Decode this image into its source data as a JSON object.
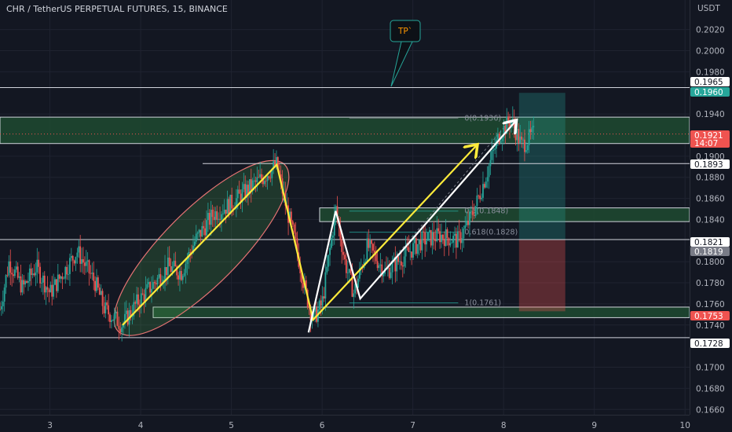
{
  "header": {
    "title": "CHR / TetherUS PERPETUAL FUTURES, 15, BINANCE"
  },
  "axis": {
    "currency": "USDT",
    "ticks": [
      "0.2020",
      "0.2000",
      "0.1980",
      "0.1940",
      "0.1900",
      "0.1880",
      "0.1860",
      "0.1840",
      "0.1800",
      "0.1780",
      "0.1760",
      "0.1740",
      "0.1700",
      "0.1680",
      "0.1660"
    ],
    "x_ticks": [
      "3",
      "4",
      "5",
      "6",
      "7",
      "8",
      "9",
      "10"
    ]
  },
  "tp_label": "TP`",
  "fib": {
    "level_0": "0(0.1936)",
    "level_05": "0.5(0.1848)",
    "level_0618": "0.618(0.1828)",
    "level_1": "1(0.1761)"
  },
  "price_tags": [
    {
      "text": "0.1965",
      "style": "white"
    },
    {
      "text": "0.1960",
      "style": "green"
    },
    {
      "text": "0.1921",
      "style": "red"
    },
    {
      "text": "14:07",
      "style": "red"
    },
    {
      "text": "0.1893",
      "style": "white"
    },
    {
      "text": "0.1821",
      "style": "white"
    },
    {
      "text": "0.1819",
      "style": "gray"
    },
    {
      "text": "0.1753",
      "style": "red"
    },
    {
      "text": "0.1728",
      "style": "white"
    }
  ],
  "colors": {
    "background": "#131722",
    "up": "#26a69a",
    "down": "#ef5350",
    "zone": "#1e4a30",
    "yellow": "#ffeb3b",
    "white": "#ffffff"
  },
  "chart_data": {
    "type": "candlestick",
    "symbol": "CHR / TetherUS PERPETUAL FUTURES",
    "interval": "15",
    "exchange": "BINANCE",
    "x_ticks": [
      3,
      4,
      5,
      6,
      7,
      8,
      9,
      10
    ],
    "xlim": [
      2.45,
      10.05
    ],
    "ylim": [
      0.1655,
      0.2048
    ],
    "y_ticks": [
      0.202,
      0.2,
      0.198,
      0.194,
      0.19,
      0.188,
      0.186,
      0.184,
      0.18,
      0.178,
      0.176,
      0.174,
      0.17,
      0.168,
      0.166
    ],
    "price_path": [
      [
        2.45,
        0.1755
      ],
      [
        2.55,
        0.18
      ],
      [
        2.7,
        0.1775
      ],
      [
        2.85,
        0.1795
      ],
      [
        3.0,
        0.177
      ],
      [
        3.15,
        0.179
      ],
      [
        3.3,
        0.181
      ],
      [
        3.5,
        0.178
      ],
      [
        3.6,
        0.1755
      ],
      [
        3.8,
        0.174
      ],
      [
        3.95,
        0.176
      ],
      [
        4.1,
        0.1775
      ],
      [
        4.3,
        0.1795
      ],
      [
        4.45,
        0.179
      ],
      [
        4.6,
        0.182
      ],
      [
        4.8,
        0.1845
      ],
      [
        5.0,
        0.1855
      ],
      [
        5.2,
        0.187
      ],
      [
        5.35,
        0.188
      ],
      [
        5.5,
        0.1892
      ],
      [
        5.58,
        0.186
      ],
      [
        5.7,
        0.182
      ],
      [
        5.82,
        0.177
      ],
      [
        5.9,
        0.1745
      ],
      [
        6.0,
        0.176
      ],
      [
        6.15,
        0.185
      ],
      [
        6.25,
        0.18
      ],
      [
        6.35,
        0.177
      ],
      [
        6.5,
        0.1815
      ],
      [
        6.7,
        0.179
      ],
      [
        6.9,
        0.1805
      ],
      [
        7.1,
        0.182
      ],
      [
        7.3,
        0.1825
      ],
      [
        7.5,
        0.182
      ],
      [
        7.6,
        0.1835
      ],
      [
        7.7,
        0.1855
      ],
      [
        7.8,
        0.188
      ],
      [
        7.95,
        0.192
      ],
      [
        8.08,
        0.1935
      ],
      [
        8.2,
        0.191
      ],
      [
        8.33,
        0.1921
      ]
    ],
    "last_price": 0.1921,
    "countdown": "14:07",
    "levels": [
      0.1965,
      0.1893,
      0.1821,
      0.1728
    ],
    "zones": [
      {
        "from": 0.1912,
        "to": 0.1937
      },
      {
        "from": 0.1838,
        "to": 0.1851
      },
      {
        "from": 0.1747,
        "to": 0.1757
      }
    ],
    "fib_levels": [
      {
        "ratio": 0,
        "value": 0.1936
      },
      {
        "ratio": 0.5,
        "value": 0.1848
      },
      {
        "ratio": 0.618,
        "value": 0.1828
      },
      {
        "ratio": 1,
        "value": 0.1761
      }
    ],
    "long_position": {
      "x_from": 8.17,
      "x_to": 8.68,
      "entry": 0.1821,
      "target": 0.196,
      "stop": 0.1753
    },
    "yellow_path": [
      [
        3.8,
        0.174
      ],
      [
        5.5,
        0.1892
      ],
      [
        5.9,
        0.1745
      ],
      [
        7.7,
        0.191
      ]
    ],
    "white_path": [
      [
        5.85,
        0.1733
      ],
      [
        6.15,
        0.1848
      ],
      [
        6.42,
        0.1765
      ],
      [
        8.13,
        0.1933
      ]
    ],
    "ellipse": {
      "center_x": 4.67,
      "center_y": 0.1813,
      "note": "highlight of rising channel"
    }
  }
}
